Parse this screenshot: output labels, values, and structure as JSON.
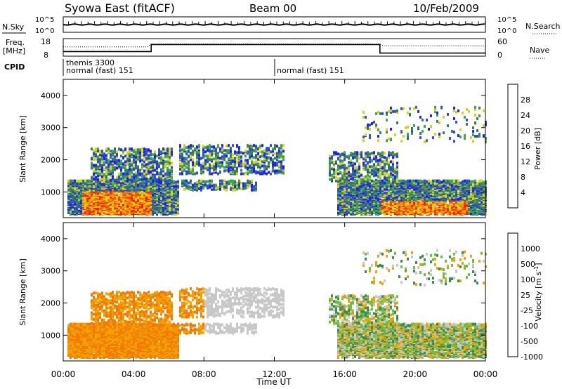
{
  "header": {
    "title": "Syowa East (fitACF)",
    "beam": "Beam 00",
    "date": "10/Feb/2009"
  },
  "nsky_panel": {
    "label": "N.Sky",
    "right_label": "N.Search",
    "left_ticks": [
      "10^5",
      "10^0"
    ],
    "right_ticks": [
      "10^5",
      "10^0"
    ]
  },
  "freq_panel": {
    "label_top": "Freq.",
    "label_bottom": "[MHz]",
    "right_label": "Nave",
    "left_ticks": [
      "18",
      "8"
    ],
    "right_ticks": [
      "60",
      "0"
    ]
  },
  "cpid_panel": {
    "label": "CPID",
    "segments": [
      {
        "line1": "themis 3300",
        "line2": "normal (fast) 151"
      },
      {
        "line1": "",
        "line2": "normal (fast) 151"
      }
    ]
  },
  "chart_data": [
    {
      "type": "heatmap",
      "quantity": "Power",
      "ylabel": "Slant Range [km]",
      "yticks": [
        "1000",
        "2000",
        "3000",
        "4000"
      ],
      "ylim": [
        200,
        4500
      ],
      "xlim_hours": [
        0,
        24
      ],
      "colorbar_label": "Power [dB]",
      "colorbar_ticks": [
        "4",
        "8",
        "12",
        "16",
        "20",
        "24",
        "28"
      ],
      "colors": [
        "#1e1eff",
        "#2b52c8",
        "#3a7d5a",
        "#3fa64a",
        "#d4d41a",
        "#f2a300",
        "#f26400",
        "#ff1e00"
      ]
    },
    {
      "type": "heatmap",
      "quantity": "Velocity",
      "ylabel": "Slant Range [km]",
      "yticks": [
        "1000",
        "2000",
        "3000",
        "4000"
      ],
      "ylim": [
        200,
        4500
      ],
      "xlim_hours": [
        0,
        24
      ],
      "colorbar_label": "Velocity [m s",
      "colorbar_label_sup": "-1",
      "colorbar_label_end": "]",
      "colorbar_ticks": [
        "1000",
        "500",
        "100",
        "25",
        "-25",
        "-100",
        "-500",
        "-1000"
      ],
      "colors": [
        "#1a3cff",
        "#2a63a8",
        "#3a8a55",
        "#6cc040",
        "#c8c8c8",
        "#f2a300",
        "#f27a00",
        "#ff1e00"
      ]
    }
  ],
  "xaxis": {
    "label": "Time UT",
    "ticks": [
      "00:00",
      "04:00",
      "08:00",
      "12:00",
      "16:00",
      "20:00",
      "00:00"
    ]
  }
}
